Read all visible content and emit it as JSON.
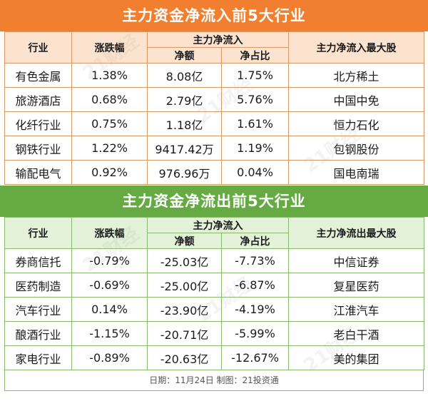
{
  "inflow": {
    "title": "主力资金净流入前5大行业",
    "headers": {
      "industry": "行业",
      "change": "涨跌幅",
      "net_group": "主力净流入",
      "net_amount": "净额",
      "net_ratio": "净占比",
      "top_stock": "主力净流入最大股"
    },
    "rows": [
      {
        "industry": "有色金属",
        "change": "1.38%",
        "amount": "8.08亿",
        "ratio": "1.75%",
        "stock": "北方稀土"
      },
      {
        "industry": "旅游酒店",
        "change": "0.68%",
        "amount": "2.79亿",
        "ratio": "5.76%",
        "stock": "中国中免"
      },
      {
        "industry": "化纤行业",
        "change": "0.75%",
        "amount": "1.18亿",
        "ratio": "1.61%",
        "stock": "恒力石化"
      },
      {
        "industry": "钢铁行业",
        "change": "1.22%",
        "amount": "9417.42万",
        "ratio": "1.19%",
        "stock": "包钢股份"
      },
      {
        "industry": "输配电气",
        "change": "0.92%",
        "amount": "976.96万",
        "ratio": "0.04%",
        "stock": "国电南瑞"
      }
    ]
  },
  "outflow": {
    "title": "主力资金净流出前5大行业",
    "headers": {
      "industry": "行业",
      "change": "涨跌幅",
      "net_group": "主力净流入",
      "net_amount": "净额",
      "net_ratio": "净占比",
      "top_stock": "主力净流出最大股"
    },
    "rows": [
      {
        "industry": "券商信托",
        "change": "-0.79%",
        "amount": "-25.03亿",
        "ratio": "-7.73%",
        "stock": "中信证券"
      },
      {
        "industry": "医药制造",
        "change": "-0.69%",
        "amount": "-25.00亿",
        "ratio": "-6.87%",
        "stock": "复星医药"
      },
      {
        "industry": "汽车行业",
        "change": "0.14%",
        "amount": "-23.90亿",
        "ratio": "-4.19%",
        "stock": "江淮汽车"
      },
      {
        "industry": "酿酒行业",
        "change": "-1.15%",
        "amount": "-20.71亿",
        "ratio": "-5.99%",
        "stock": "老白干酒"
      },
      {
        "industry": "家电行业",
        "change": "-0.89%",
        "amount": "-20.63亿",
        "ratio": "-12.67%",
        "stock": "美的集团"
      }
    ]
  },
  "footer": "日期：11月24日 制图：21投资通",
  "colors": {
    "inflow_banner": "#f17f2f",
    "outflow_banner": "#66aa44"
  }
}
